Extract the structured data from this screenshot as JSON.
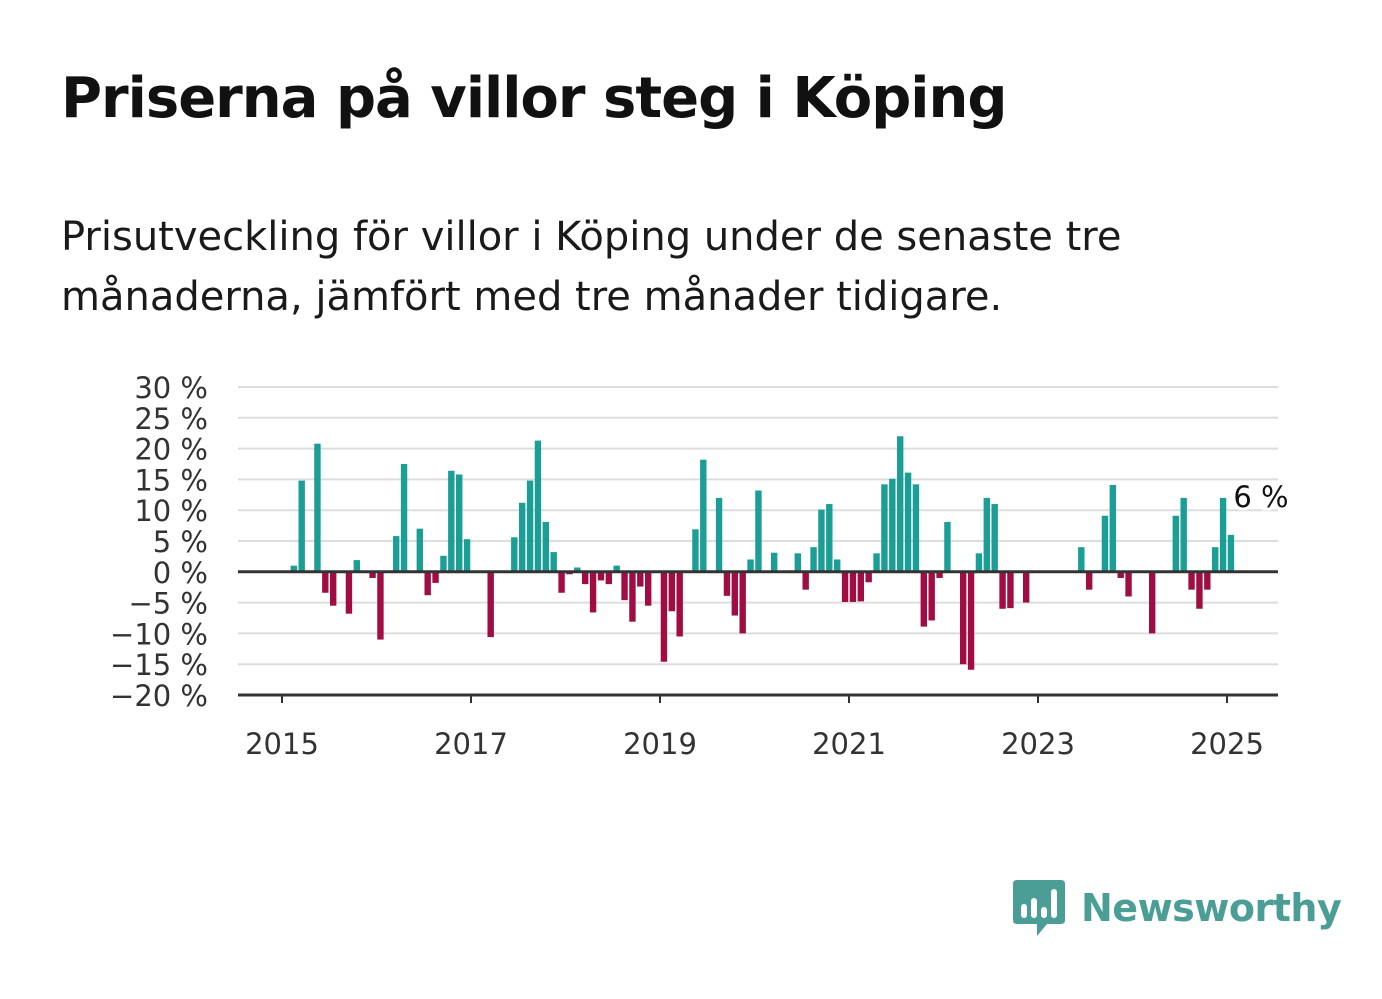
{
  "title": "Priserna på villor steg i Köping",
  "subtitle": "Prisutveckling för villor i Köping under de senaste tre månaderna, jämfört med tre månader tidigare.",
  "brand": {
    "name": "Newsworthy",
    "color": "#4a9e96"
  },
  "chart_data": {
    "type": "bar",
    "title": "",
    "xlabel": "",
    "ylabel": "",
    "ylim": [
      -20,
      30
    ],
    "yticks": [
      30,
      25,
      20,
      15,
      10,
      5,
      0,
      -5,
      -10,
      -15,
      -20
    ],
    "ytick_labels": [
      "30 %",
      "25 %",
      "20 %",
      "15 %",
      "10 %",
      "5 %",
      "0 %",
      "−5 %",
      "−10 %",
      "−15 %",
      "−20 %"
    ],
    "xticks": [
      "2015",
      "2017",
      "2019",
      "2021",
      "2023",
      "2025"
    ],
    "grid": true,
    "legend": "none",
    "positive_color": "#1a9e95",
    "negative_color": "#a10d43",
    "end_label": "6 %",
    "series": [
      {
        "values": [
          {
            "x": "2015-01",
            "y": 0
          },
          {
            "x": "2015-02",
            "y": 1
          },
          {
            "x": "2015-03",
            "y": 14.8
          },
          {
            "x": "2015-04",
            "y": 0
          },
          {
            "x": "2015-05",
            "y": 20.8
          },
          {
            "x": "2015-06",
            "y": -3.4
          },
          {
            "x": "2015-07",
            "y": -5.5
          },
          {
            "x": "2015-08",
            "y": 0
          },
          {
            "x": "2015-09",
            "y": -6.8
          },
          {
            "x": "2015-10",
            "y": 1.9
          },
          {
            "x": "2015-11",
            "y": 0
          },
          {
            "x": "2015-12",
            "y": -1
          },
          {
            "x": "2016-01",
            "y": -11
          },
          {
            "x": "2016-02",
            "y": 0
          },
          {
            "x": "2016-03",
            "y": 5.8
          },
          {
            "x": "2016-04",
            "y": 17.5
          },
          {
            "x": "2016-05",
            "y": 0
          },
          {
            "x": "2016-06",
            "y": 7
          },
          {
            "x": "2016-07",
            "y": -3.8
          },
          {
            "x": "2016-08",
            "y": -1.8
          },
          {
            "x": "2016-09",
            "y": 2.6
          },
          {
            "x": "2016-10",
            "y": 16.4
          },
          {
            "x": "2016-11",
            "y": 15.8
          },
          {
            "x": "2016-12",
            "y": 5.3
          },
          {
            "x": "2017-01",
            "y": 0
          },
          {
            "x": "2017-02",
            "y": 0
          },
          {
            "x": "2017-03",
            "y": -10.6
          },
          {
            "x": "2017-04",
            "y": 0
          },
          {
            "x": "2017-05",
            "y": 0
          },
          {
            "x": "2017-06",
            "y": 5.6
          },
          {
            "x": "2017-07",
            "y": 11.2
          },
          {
            "x": "2017-08",
            "y": 14.8
          },
          {
            "x": "2017-09",
            "y": 21.3
          },
          {
            "x": "2017-10",
            "y": 8.1
          },
          {
            "x": "2017-11",
            "y": 3.2
          },
          {
            "x": "2017-12",
            "y": -3.4
          },
          {
            "x": "2018-01",
            "y": -0.4
          },
          {
            "x": "2018-02",
            "y": 0.7
          },
          {
            "x": "2018-03",
            "y": -2
          },
          {
            "x": "2018-04",
            "y": -6.6
          },
          {
            "x": "2018-05",
            "y": -1.4
          },
          {
            "x": "2018-06",
            "y": -2
          },
          {
            "x": "2018-07",
            "y": 1
          },
          {
            "x": "2018-08",
            "y": -4.6
          },
          {
            "x": "2018-09",
            "y": -8.1
          },
          {
            "x": "2018-10",
            "y": -2.4
          },
          {
            "x": "2018-11",
            "y": -5.5
          },
          {
            "x": "2018-12",
            "y": 0
          },
          {
            "x": "2019-01",
            "y": -14.6
          },
          {
            "x": "2019-02",
            "y": -6.4
          },
          {
            "x": "2019-03",
            "y": -10.5
          },
          {
            "x": "2019-04",
            "y": 0
          },
          {
            "x": "2019-05",
            "y": 6.9
          },
          {
            "x": "2019-06",
            "y": 18.2
          },
          {
            "x": "2019-07",
            "y": 0
          },
          {
            "x": "2019-08",
            "y": 12
          },
          {
            "x": "2019-09",
            "y": -3.9
          },
          {
            "x": "2019-10",
            "y": -7.1
          },
          {
            "x": "2019-11",
            "y": -10
          },
          {
            "x": "2019-12",
            "y": 2
          },
          {
            "x": "2020-01",
            "y": 13.2
          },
          {
            "x": "2020-02",
            "y": 0
          },
          {
            "x": "2020-03",
            "y": 3.1
          },
          {
            "x": "2020-04",
            "y": 0
          },
          {
            "x": "2020-05",
            "y": 0
          },
          {
            "x": "2020-06",
            "y": 3
          },
          {
            "x": "2020-07",
            "y": -2.9
          },
          {
            "x": "2020-08",
            "y": 4
          },
          {
            "x": "2020-09",
            "y": 10.1
          },
          {
            "x": "2020-10",
            "y": 11
          },
          {
            "x": "2020-11",
            "y": 2
          },
          {
            "x": "2020-12",
            "y": -4.9
          },
          {
            "x": "2021-01",
            "y": -4.9
          },
          {
            "x": "2021-02",
            "y": -4.8
          },
          {
            "x": "2021-03",
            "y": -1.7
          },
          {
            "x": "2021-04",
            "y": 3
          },
          {
            "x": "2021-05",
            "y": 14.2
          },
          {
            "x": "2021-06",
            "y": 15.1
          },
          {
            "x": "2021-07",
            "y": 22
          },
          {
            "x": "2021-08",
            "y": 16.1
          },
          {
            "x": "2021-09",
            "y": 14.2
          },
          {
            "x": "2021-10",
            "y": -8.9
          },
          {
            "x": "2021-11",
            "y": -7.9
          },
          {
            "x": "2021-12",
            "y": -1
          },
          {
            "x": "2022-01",
            "y": 8.1
          },
          {
            "x": "2022-02",
            "y": 0
          },
          {
            "x": "2022-03",
            "y": -15
          },
          {
            "x": "2022-04",
            "y": -15.9
          },
          {
            "x": "2022-05",
            "y": 3
          },
          {
            "x": "2022-06",
            "y": 12
          },
          {
            "x": "2022-07",
            "y": 11
          },
          {
            "x": "2022-08",
            "y": -6
          },
          {
            "x": "2022-09",
            "y": -5.9
          },
          {
            "x": "2022-10",
            "y": 0
          },
          {
            "x": "2022-11",
            "y": -5
          },
          {
            "x": "2022-12",
            "y": 0
          },
          {
            "x": "2023-01",
            "y": 0
          },
          {
            "x": "2023-02",
            "y": 0
          },
          {
            "x": "2023-03",
            "y": 0
          },
          {
            "x": "2023-04",
            "y": 0
          },
          {
            "x": "2023-05",
            "y": 0
          },
          {
            "x": "2023-06",
            "y": 4
          },
          {
            "x": "2023-07",
            "y": -2.9
          },
          {
            "x": "2023-08",
            "y": 0
          },
          {
            "x": "2023-09",
            "y": 9.1
          },
          {
            "x": "2023-10",
            "y": 14.1
          },
          {
            "x": "2023-11",
            "y": -1
          },
          {
            "x": "2023-12",
            "y": -4
          },
          {
            "x": "2024-01",
            "y": 0
          },
          {
            "x": "2024-02",
            "y": 0
          },
          {
            "x": "2024-03",
            "y": -10
          },
          {
            "x": "2024-04",
            "y": 0
          },
          {
            "x": "2024-05",
            "y": 0
          },
          {
            "x": "2024-06",
            "y": 9.1
          },
          {
            "x": "2024-07",
            "y": 12
          },
          {
            "x": "2024-08",
            "y": -2.9
          },
          {
            "x": "2024-09",
            "y": -6
          },
          {
            "x": "2024-10",
            "y": -2.9
          },
          {
            "x": "2024-11",
            "y": 4
          },
          {
            "x": "2024-12",
            "y": 12
          },
          {
            "x": "2025-01",
            "y": 6
          }
        ]
      }
    ]
  }
}
